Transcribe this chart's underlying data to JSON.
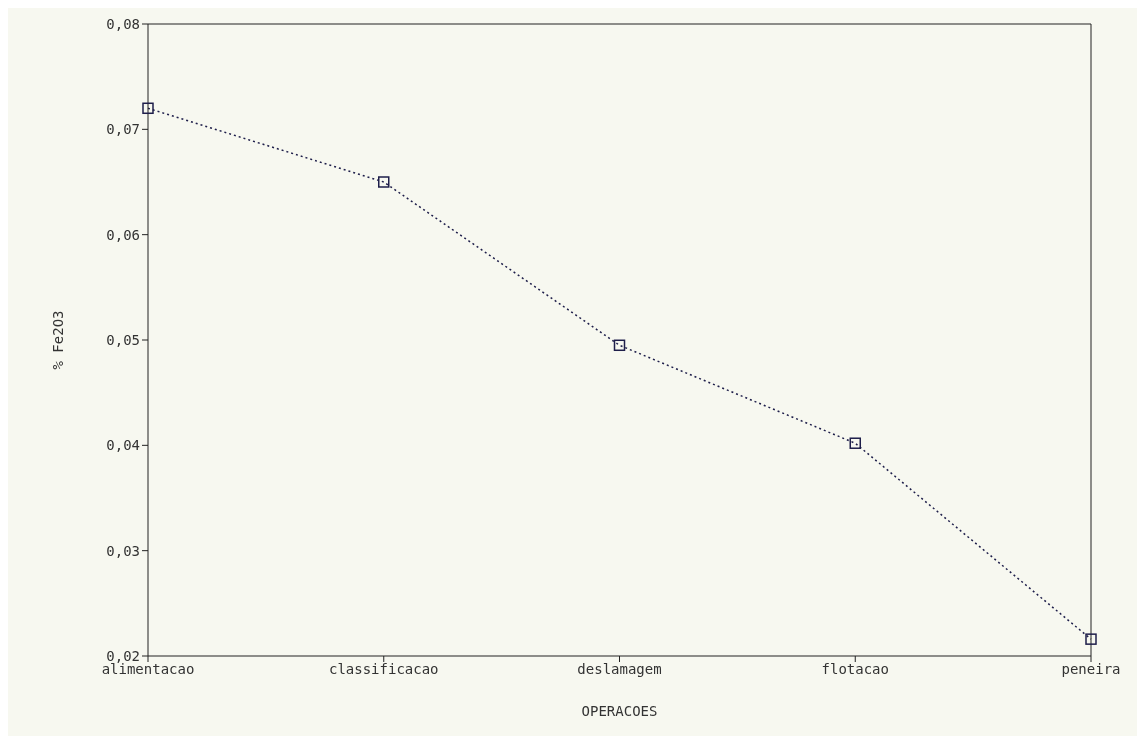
{
  "chart_data": {
    "type": "line",
    "xlabel": "OPERACOES",
    "ylabel": "% Fe2O3",
    "categories": [
      "alimentacao",
      "classificacao",
      "deslamagem",
      "flotacao",
      "peneira"
    ],
    "series": [
      {
        "color": "#1e1e4a",
        "values": [
          0.072,
          0.065,
          0.0495,
          0.0402,
          0.0216
        ]
      }
    ],
    "ylim": [
      0.02,
      0.08
    ],
    "yticks": [
      {
        "value": 0.02,
        "label": "0,02"
      },
      {
        "value": 0.03,
        "label": "0,03"
      },
      {
        "value": 0.04,
        "label": "0,04"
      },
      {
        "value": 0.05,
        "label": "0,05"
      },
      {
        "value": 0.06,
        "label": "0,06"
      },
      {
        "value": 0.07,
        "label": "0,07"
      },
      {
        "value": 0.08,
        "label": "0,08"
      }
    ],
    "marker": "square",
    "line_style": "dotted",
    "grid": false,
    "legend": false
  }
}
